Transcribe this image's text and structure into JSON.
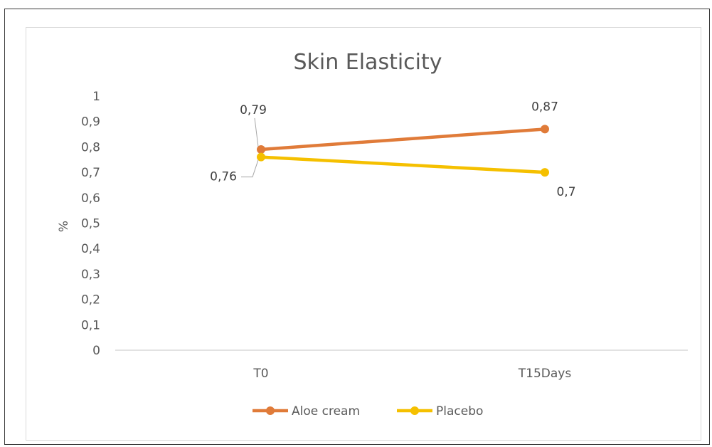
{
  "chart_data": {
    "type": "line",
    "title": "Skin Elasticity",
    "xlabel": "",
    "ylabel": "%",
    "categories": [
      "T0",
      "T15Days"
    ],
    "ylim": [
      0,
      1
    ],
    "y_ticks": [
      "0",
      "0,1",
      "0,2",
      "0,3",
      "0,4",
      "0,5",
      "0,6",
      "0,7",
      "0,8",
      "0,9",
      "1"
    ],
    "grid": false,
    "legend_position": "bottom",
    "series": [
      {
        "name": "Aloe cream",
        "values": [
          0.79,
          0.87
        ],
        "labels": [
          "0,79",
          "0,87"
        ],
        "color": "#e07b39"
      },
      {
        "name": "Placebo",
        "values": [
          0.76,
          0.7
        ],
        "labels": [
          "0,76",
          "0,7"
        ],
        "color": "#f5c000"
      }
    ]
  }
}
